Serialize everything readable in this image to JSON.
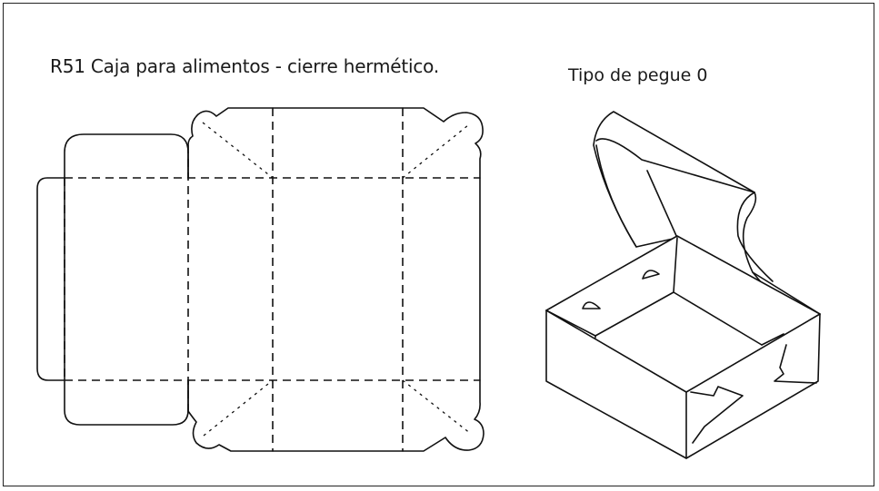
{
  "diagram": {
    "title": "R51 Caja para alimentos - cierre hermético.",
    "closure_label": "Tipo de pegue 0"
  },
  "colors": {
    "line": "#111111",
    "background": "#ffffff",
    "frame": "#222222"
  }
}
